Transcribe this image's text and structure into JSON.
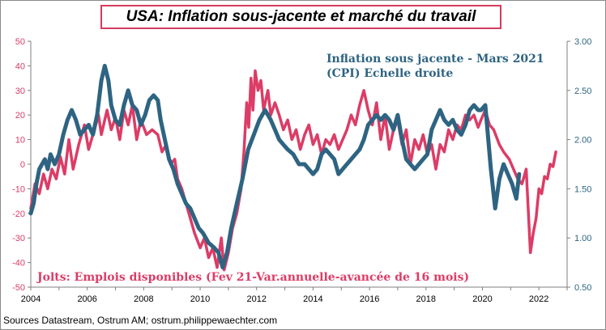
{
  "title": "USA: Inflation sous-jacente et marché du travail",
  "source": "Sources Datastream,  Ostrum AM; ostrum.philippewaechter.com",
  "chart_data": {
    "type": "line",
    "title": "USA: Inflation sous-jacente et marché du travail",
    "x_ticks": [
      "2004",
      "2006",
      "2008",
      "2010",
      "2012",
      "2014",
      "2016",
      "2018",
      "2020",
      "2022"
    ],
    "x_range": [
      2004.0,
      2023.0
    ],
    "y_left": {
      "range": [
        -50,
        50
      ],
      "ticks": [
        "50",
        "40",
        "30",
        "20",
        "10",
        "0",
        "-10",
        "-20",
        "-30",
        "-40",
        "-50"
      ],
      "color": "#dc3c66"
    },
    "y_right": {
      "range": [
        0.5,
        3.0
      ],
      "ticks": [
        "3.00",
        "2.50",
        "2.00",
        "1.50",
        "1.00",
        "0.50"
      ],
      "color": "#2e6482"
    },
    "grid": false,
    "annotations": {
      "blue_line1": "Inflation  sous jacente - Mars 2021",
      "blue_line2": "(CPI) Echelle  droite",
      "red": "Jolts: Emplois disponibles  (Fev 21-Var.annuelle-avancée de 16 mois)"
    },
    "series": [
      {
        "key": "jolts",
        "axis": "left",
        "color": "#dc3c66",
        "points": [
          [
            2004.0,
            -18
          ],
          [
            2004.15,
            -8
          ],
          [
            2004.3,
            -12
          ],
          [
            2004.45,
            -4
          ],
          [
            2004.6,
            -10
          ],
          [
            2004.75,
            -2
          ],
          [
            2004.9,
            -6
          ],
          [
            2005.05,
            3
          ],
          [
            2005.2,
            -4
          ],
          [
            2005.35,
            10
          ],
          [
            2005.5,
            -2
          ],
          [
            2005.7,
            8
          ],
          [
            2005.9,
            16
          ],
          [
            2006.05,
            6
          ],
          [
            2006.2,
            12
          ],
          [
            2006.4,
            20
          ],
          [
            2006.5,
            12
          ],
          [
            2006.7,
            22
          ],
          [
            2006.85,
            14
          ],
          [
            2007.0,
            19
          ],
          [
            2007.15,
            10
          ],
          [
            2007.3,
            22
          ],
          [
            2007.45,
            16
          ],
          [
            2007.6,
            24
          ],
          [
            2007.75,
            10
          ],
          [
            2007.9,
            18
          ],
          [
            2008.1,
            12
          ],
          [
            2008.3,
            14
          ],
          [
            2008.5,
            12
          ],
          [
            2008.65,
            5
          ],
          [
            2008.8,
            8
          ],
          [
            2008.95,
            0
          ],
          [
            2009.1,
            2
          ],
          [
            2009.2,
            -6
          ],
          [
            2009.35,
            -10
          ],
          [
            2009.5,
            -16
          ],
          [
            2009.65,
            -22
          ],
          [
            2009.8,
            -28
          ],
          [
            2010.0,
            -34
          ],
          [
            2010.15,
            -30
          ],
          [
            2010.3,
            -38
          ],
          [
            2010.45,
            -34
          ],
          [
            2010.6,
            -42
          ],
          [
            2010.75,
            -30
          ],
          [
            2010.85,
            -43
          ],
          [
            2011.0,
            -36
          ],
          [
            2011.15,
            -26
          ],
          [
            2011.3,
            -20
          ],
          [
            2011.45,
            -10
          ],
          [
            2011.55,
            5
          ],
          [
            2011.65,
            25
          ],
          [
            2011.72,
            15
          ],
          [
            2011.8,
            35
          ],
          [
            2011.87,
            22
          ],
          [
            2011.95,
            38
          ],
          [
            2012.05,
            30
          ],
          [
            2012.15,
            34
          ],
          [
            2012.25,
            22
          ],
          [
            2012.4,
            30
          ],
          [
            2012.5,
            20
          ],
          [
            2012.65,
            25
          ],
          [
            2012.8,
            20
          ],
          [
            2012.95,
            14
          ],
          [
            2013.1,
            18
          ],
          [
            2013.25,
            10
          ],
          [
            2013.4,
            14
          ],
          [
            2013.55,
            6
          ],
          [
            2013.7,
            12
          ],
          [
            2013.85,
            16
          ],
          [
            2014.0,
            8
          ],
          [
            2014.15,
            12
          ],
          [
            2014.3,
            4
          ],
          [
            2014.45,
            10
          ],
          [
            2014.6,
            8
          ],
          [
            2014.75,
            12
          ],
          [
            2014.9,
            6
          ],
          [
            2015.05,
            10
          ],
          [
            2015.2,
            14
          ],
          [
            2015.35,
            20
          ],
          [
            2015.5,
            16
          ],
          [
            2015.65,
            24
          ],
          [
            2015.8,
            30
          ],
          [
            2015.95,
            22
          ],
          [
            2016.1,
            16
          ],
          [
            2016.25,
            25
          ],
          [
            2016.4,
            10
          ],
          [
            2016.55,
            20
          ],
          [
            2016.7,
            6
          ],
          [
            2016.85,
            14
          ],
          [
            2017.0,
            18
          ],
          [
            2017.15,
            8
          ],
          [
            2017.3,
            14
          ],
          [
            2017.45,
            0
          ],
          [
            2017.6,
            10
          ],
          [
            2017.75,
            6
          ],
          [
            2017.9,
            12
          ],
          [
            2018.05,
            4
          ],
          [
            2018.2,
            8
          ],
          [
            2018.35,
            -2
          ],
          [
            2018.5,
            8
          ],
          [
            2018.65,
            5
          ],
          [
            2018.8,
            14
          ],
          [
            2018.95,
            10
          ],
          [
            2019.1,
            16
          ],
          [
            2019.25,
            14
          ],
          [
            2019.4,
            20
          ],
          [
            2019.55,
            18
          ],
          [
            2019.7,
            20
          ],
          [
            2019.85,
            15
          ],
          [
            2019.95,
            18
          ],
          [
            2020.1,
            22
          ],
          [
            2020.25,
            16
          ],
          [
            2020.4,
            14
          ],
          [
            2020.6,
            8
          ],
          [
            2020.75,
            5
          ],
          [
            2020.95,
            2
          ],
          [
            2021.1,
            -2
          ],
          [
            2021.25,
            -6
          ],
          [
            2021.4,
            -8
          ],
          [
            2021.55,
            -2
          ],
          [
            2021.7,
            -36
          ],
          [
            2021.8,
            -28
          ],
          [
            2021.9,
            -22
          ],
          [
            2022.0,
            -10
          ],
          [
            2022.1,
            -12
          ],
          [
            2022.2,
            -5
          ],
          [
            2022.3,
            -6
          ],
          [
            2022.4,
            0
          ],
          [
            2022.5,
            -1
          ],
          [
            2022.6,
            5
          ]
        ]
      },
      {
        "key": "cpi",
        "axis": "right",
        "color": "#2e6482",
        "points": [
          [
            2004.0,
            1.25
          ],
          [
            2004.1,
            1.35
          ],
          [
            2004.2,
            1.55
          ],
          [
            2004.3,
            1.7
          ],
          [
            2004.4,
            1.75
          ],
          [
            2004.5,
            1.8
          ],
          [
            2004.6,
            1.7
          ],
          [
            2004.7,
            1.85
          ],
          [
            2004.85,
            1.75
          ],
          [
            2005.0,
            1.85
          ],
          [
            2005.15,
            2.05
          ],
          [
            2005.3,
            2.2
          ],
          [
            2005.45,
            2.3
          ],
          [
            2005.6,
            2.2
          ],
          [
            2005.75,
            2.05
          ],
          [
            2005.9,
            2.1
          ],
          [
            2006.05,
            2.15
          ],
          [
            2006.2,
            2.05
          ],
          [
            2006.35,
            2.25
          ],
          [
            2006.5,
            2.6
          ],
          [
            2006.62,
            2.75
          ],
          [
            2006.75,
            2.6
          ],
          [
            2006.85,
            2.35
          ],
          [
            2007.0,
            2.2
          ],
          [
            2007.15,
            2.15
          ],
          [
            2007.3,
            2.35
          ],
          [
            2007.45,
            2.5
          ],
          [
            2007.6,
            2.35
          ],
          [
            2007.75,
            2.3
          ],
          [
            2007.9,
            2.15
          ],
          [
            2008.05,
            2.25
          ],
          [
            2008.2,
            2.4
          ],
          [
            2008.35,
            2.45
          ],
          [
            2008.5,
            2.4
          ],
          [
            2008.6,
            2.2
          ],
          [
            2008.75,
            2.0
          ],
          [
            2008.9,
            1.8
          ],
          [
            2009.05,
            1.7
          ],
          [
            2009.2,
            1.55
          ],
          [
            2009.35,
            1.45
          ],
          [
            2009.5,
            1.35
          ],
          [
            2009.65,
            1.3
          ],
          [
            2009.8,
            1.2
          ],
          [
            2009.95,
            1.1
          ],
          [
            2010.1,
            1.05
          ],
          [
            2010.3,
            0.95
          ],
          [
            2010.5,
            0.9
          ],
          [
            2010.65,
            0.85
          ],
          [
            2010.8,
            0.7
          ],
          [
            2010.95,
            0.85
          ],
          [
            2011.1,
            1.1
          ],
          [
            2011.3,
            1.35
          ],
          [
            2011.5,
            1.6
          ],
          [
            2011.7,
            1.9
          ],
          [
            2011.9,
            2.05
          ],
          [
            2012.1,
            2.2
          ],
          [
            2012.3,
            2.3
          ],
          [
            2012.5,
            2.2
          ],
          [
            2012.65,
            2.1
          ],
          [
            2012.8,
            2.0
          ],
          [
            2012.95,
            1.95
          ],
          [
            2013.1,
            1.9
          ],
          [
            2013.3,
            1.85
          ],
          [
            2013.5,
            1.75
          ],
          [
            2013.7,
            1.75
          ],
          [
            2013.85,
            1.7
          ],
          [
            2014.0,
            1.65
          ],
          [
            2014.15,
            1.7
          ],
          [
            2014.3,
            1.85
          ],
          [
            2014.45,
            1.9
          ],
          [
            2014.6,
            1.85
          ],
          [
            2014.75,
            1.8
          ],
          [
            2014.9,
            1.65
          ],
          [
            2015.05,
            1.7
          ],
          [
            2015.2,
            1.75
          ],
          [
            2015.35,
            1.8
          ],
          [
            2015.5,
            1.85
          ],
          [
            2015.65,
            1.9
          ],
          [
            2015.8,
            2.0
          ],
          [
            2015.95,
            2.15
          ],
          [
            2016.1,
            2.2
          ],
          [
            2016.25,
            2.25
          ],
          [
            2016.4,
            2.2
          ],
          [
            2016.55,
            2.25
          ],
          [
            2016.7,
            2.2
          ],
          [
            2016.85,
            2.1
          ],
          [
            2017.0,
            2.25
          ],
          [
            2017.15,
            2.0
          ],
          [
            2017.3,
            1.8
          ],
          [
            2017.45,
            1.75
          ],
          [
            2017.6,
            1.7
          ],
          [
            2017.75,
            1.75
          ],
          [
            2017.9,
            1.8
          ],
          [
            2018.05,
            1.85
          ],
          [
            2018.2,
            2.1
          ],
          [
            2018.35,
            2.2
          ],
          [
            2018.5,
            2.3
          ],
          [
            2018.65,
            2.2
          ],
          [
            2018.8,
            2.15
          ],
          [
            2018.95,
            2.2
          ],
          [
            2019.1,
            2.1
          ],
          [
            2019.25,
            2.05
          ],
          [
            2019.4,
            2.15
          ],
          [
            2019.55,
            2.3
          ],
          [
            2019.7,
            2.35
          ],
          [
            2019.85,
            2.3
          ],
          [
            2019.95,
            2.3
          ],
          [
            2020.1,
            2.35
          ],
          [
            2020.3,
            1.7
          ],
          [
            2020.45,
            1.3
          ],
          [
            2020.6,
            1.6
          ],
          [
            2020.75,
            1.75
          ],
          [
            2020.9,
            1.65
          ],
          [
            2021.05,
            1.55
          ],
          [
            2021.2,
            1.4
          ],
          [
            2021.3,
            1.65
          ]
        ]
      }
    ]
  }
}
